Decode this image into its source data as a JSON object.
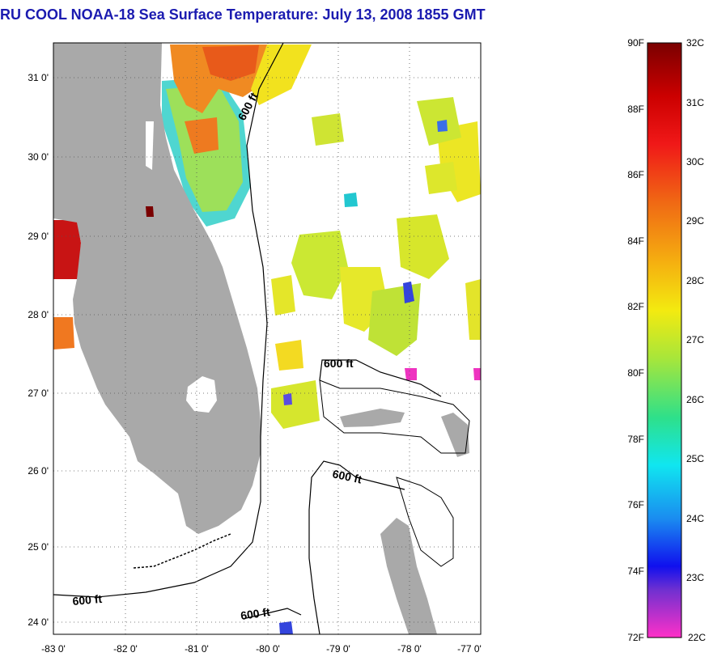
{
  "title": {
    "text": "RU COOL  NOAA-18  Sea Surface Temperature:  July 13, 2008 1855 GMT",
    "color": "#1b1bb0"
  },
  "map": {
    "lon_ticks": [
      "-83 0'",
      "-82 0'",
      "-81 0'",
      "-80 0'",
      "-79 0'",
      "-78 0'",
      "-77 0'"
    ],
    "lat_ticks": [
      "31 0'",
      "30 0'",
      "29 0'",
      "28 0'",
      "27 0'",
      "26 0'",
      "25 0'",
      "24 0'"
    ],
    "lon_range": [
      -83,
      -77
    ],
    "lat_range": [
      23.85,
      31.45
    ],
    "contour_labels": [
      "600 ft",
      "600 ft",
      "600 ft",
      "600 ft",
      "600 ft"
    ],
    "land_color": "#a9a9a9",
    "gridlines": "dotted"
  },
  "colorbar": {
    "fahrenheit_labels": [
      "90F",
      "88F",
      "86F",
      "84F",
      "82F",
      "80F",
      "78F",
      "76F",
      "74F",
      "72F"
    ],
    "celsius_labels": [
      "32C",
      "31C",
      "30C",
      "29C",
      "28C",
      "27C",
      "26C",
      "25C",
      "24C",
      "23C",
      "22C"
    ],
    "range_celsius": [
      22,
      32
    ]
  }
}
